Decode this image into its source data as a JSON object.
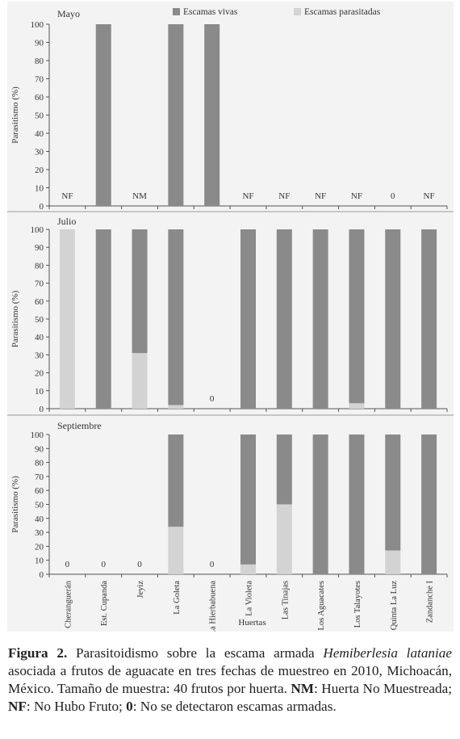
{
  "chart_data": [
    {
      "type": "bar",
      "stacked": true,
      "title": "Mayo",
      "ylabel": "Parasitismo (%)",
      "xlabel": "",
      "ylim": [
        0,
        100
      ],
      "yticks": [
        0,
        10,
        20,
        30,
        40,
        50,
        60,
        70,
        80,
        90,
        100
      ],
      "legend": {
        "position": "top",
        "entries": [
          "Escamas vivas",
          "Escamas parasitadas"
        ]
      },
      "categories": [
        "Cheranguerán",
        "Est. Cupanda",
        "Jeyiz",
        "La Goleta",
        "La Hierbabuena",
        "La Violeta",
        "Las Tinajas",
        "Los Aguacates",
        "Los Talayotes",
        "Quinta La Luz",
        "Zandanche I"
      ],
      "series": [
        {
          "name": "Escamas vivas",
          "color": "#8a8a8a",
          "values": [
            0,
            100,
            0,
            100,
            100,
            0,
            0,
            0,
            0,
            0,
            0
          ]
        },
        {
          "name": "Escamas parasitadas",
          "color": "#d3d3d3",
          "values": [
            0,
            0,
            0,
            0,
            0,
            0,
            0,
            0,
            0,
            0,
            0
          ]
        }
      ],
      "annotations": [
        "NF",
        "",
        "NM",
        "",
        "",
        "NF",
        "NF",
        "NF",
        "NF",
        "0",
        "NF"
      ]
    },
    {
      "type": "bar",
      "stacked": true,
      "title": "Julio",
      "ylabel": "Parasitismo (%)",
      "xlabel": "",
      "ylim": [
        0,
        100
      ],
      "yticks": [
        0,
        10,
        20,
        30,
        40,
        50,
        60,
        70,
        80,
        90,
        100
      ],
      "categories": [
        "Cheranguerán",
        "Est. Cupanda",
        "Jeyiz",
        "La Goleta",
        "La Hierbabuena",
        "La Violeta",
        "Las Tinajas",
        "Los Aguacates",
        "Los Talayotes",
        "Quinta La Luz",
        "Zandanche I"
      ],
      "series": [
        {
          "name": "Escamas vivas",
          "color": "#8a8a8a",
          "values": [
            0,
            100,
            69,
            98,
            0,
            100,
            100,
            100,
            97,
            100,
            100
          ]
        },
        {
          "name": "Escamas parasitadas",
          "color": "#d3d3d3",
          "values": [
            100,
            0,
            31,
            2,
            0,
            0,
            0,
            0,
            3,
            0,
            0
          ]
        }
      ],
      "annotations": [
        "",
        "",
        "",
        "",
        "0",
        "",
        "",
        "",
        "",
        "",
        ""
      ]
    },
    {
      "type": "bar",
      "stacked": true,
      "title": "Septiembre",
      "ylabel": "Parasitismo (%)",
      "xlabel": "Huertas",
      "ylim": [
        0,
        100
      ],
      "yticks": [
        0,
        10,
        20,
        30,
        40,
        50,
        60,
        70,
        80,
        90,
        100
      ],
      "categories": [
        "Cheranguerán",
        "Est. Cupanda",
        "Jeyiz",
        "La Goleta",
        "La Hierbabuena",
        "La Violeta",
        "Las Tinajas",
        "Los Aguacates",
        "Los Talayotes",
        "Quinta La Luz",
        "Zandanche I"
      ],
      "series": [
        {
          "name": "Escamas vivas",
          "color": "#8a8a8a",
          "values": [
            0,
            0,
            0,
            66,
            0,
            93,
            50,
            100,
            100,
            83,
            100
          ]
        },
        {
          "name": "Escamas parasitadas",
          "color": "#d3d3d3",
          "values": [
            0,
            0,
            0,
            34,
            0,
            7,
            50,
            0,
            0,
            17,
            0
          ]
        }
      ],
      "annotations": [
        "0",
        "0",
        "0",
        "",
        "0",
        "",
        "",
        "",
        "",
        "",
        ""
      ]
    }
  ],
  "caption": {
    "label": "Figura 2.",
    "text_1": " Parasitoidismo sobre la escama armada ",
    "species": "Hemiberlesia lataniae",
    "text_2": " asociada a frutos de aguacate en tres fechas de muestreo en 2010, Michoacán, México. Tamaño de muestra: 40 frutos por huerta. ",
    "nm_abbr": "NM",
    "nm_text": ": Huerta No Muestreada; ",
    "nf_abbr": "NF",
    "nf_text": ": No Hubo Fruto; ",
    "zero_abbr": "0",
    "zero_text": ": No se detectaron escamas armadas."
  }
}
